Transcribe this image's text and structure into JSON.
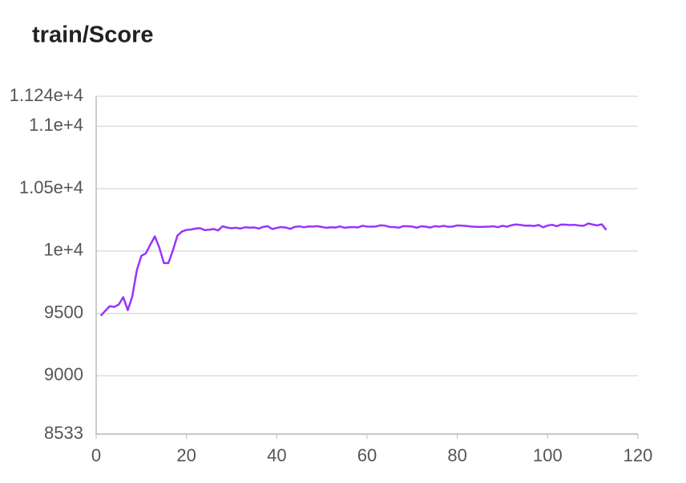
{
  "chart_data": {
    "type": "line",
    "title": "train/Score",
    "x": [
      1,
      2,
      3,
      4,
      5,
      6,
      7,
      8,
      9,
      10,
      11,
      12,
      13,
      14,
      15,
      16,
      17,
      18,
      19,
      20,
      21,
      22,
      23,
      24,
      25,
      26,
      27,
      28,
      29,
      30,
      31,
      32,
      33,
      34,
      35,
      36,
      37,
      38,
      39,
      40,
      41,
      42,
      43,
      44,
      45,
      46,
      47,
      48,
      49,
      50,
      51,
      52,
      53,
      54,
      55,
      56,
      57,
      58,
      59,
      60,
      61,
      62,
      63,
      64,
      65,
      66,
      67,
      68,
      69,
      70,
      71,
      72,
      73,
      74,
      75,
      76,
      77,
      78,
      79,
      80,
      81,
      82,
      83,
      84,
      85,
      86,
      87,
      88,
      89,
      90,
      91,
      92,
      93,
      94,
      95,
      96,
      97,
      98,
      99,
      100,
      101,
      102,
      103,
      104,
      105,
      106,
      107,
      108,
      109,
      110,
      111,
      112,
      113
    ],
    "series": [
      {
        "color": "#9933ff",
        "values": [
          9481,
          9520,
          9558,
          9552,
          9571,
          9630,
          9526,
          9636,
          9844,
          9961,
          9981,
          10052,
          10117,
          10026,
          9903,
          9903,
          10006,
          10123,
          10156,
          10169,
          10172,
          10180,
          10183,
          10168,
          10170,
          10176,
          10165,
          10198,
          10188,
          10182,
          10186,
          10180,
          10190,
          10187,
          10189,
          10180,
          10193,
          10199,
          10176,
          10185,
          10192,
          10188,
          10178,
          10193,
          10198,
          10190,
          10197,
          10196,
          10199,
          10193,
          10186,
          10190,
          10188,
          10197,
          10186,
          10190,
          10192,
          10189,
          10202,
          10196,
          10195,
          10197,
          10206,
          10203,
          10193,
          10192,
          10187,
          10199,
          10198,
          10196,
          10187,
          10198,
          10195,
          10188,
          10199,
          10195,
          10202,
          10194,
          10196,
          10205,
          10203,
          10201,
          10196,
          10194,
          10193,
          10194,
          10195,
          10198,
          10191,
          10202,
          10195,
          10207,
          10213,
          10209,
          10203,
          10204,
          10200,
          10209,
          10190,
          10204,
          10210,
          10199,
          10212,
          10211,
          10208,
          10210,
          10204,
          10202,
          10221,
          10212,
          10205,
          10214,
          10169
        ]
      }
    ],
    "xlim": [
      0,
      120
    ],
    "xticks": [
      0,
      20,
      40,
      60,
      80,
      100,
      120
    ],
    "ylim": [
      8533,
      11240
    ],
    "yticks": [
      8533,
      9000,
      9500,
      {
        "value": 10000,
        "label": "1e+4"
      },
      {
        "value": 10500,
        "label": "1.05e+4"
      },
      {
        "value": 11000,
        "label": "1.1e+4"
      },
      {
        "value": 11240,
        "label": "1.124e+4"
      }
    ],
    "grid": true
  }
}
